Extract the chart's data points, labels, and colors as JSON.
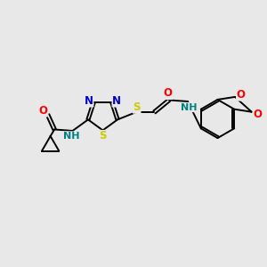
{
  "bg_color": "#e8e8e8",
  "atom_colors": {
    "C": "#000000",
    "N": "#0000cc",
    "S": "#cccc00",
    "O": "#ff0000",
    "NH": "#008080"
  },
  "bond_color": "#000000",
  "lw": 1.4,
  "fs": 8.5
}
